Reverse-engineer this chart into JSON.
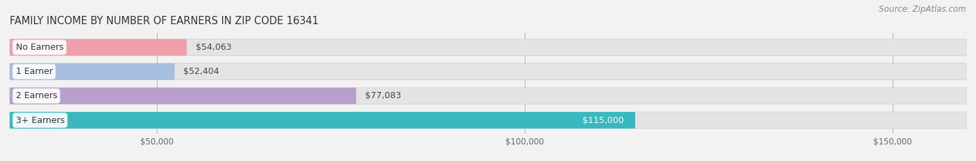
{
  "title": "FAMILY INCOME BY NUMBER OF EARNERS IN ZIP CODE 16341",
  "source": "Source: ZipAtlas.com",
  "categories": [
    "No Earners",
    "1 Earner",
    "2 Earners",
    "3+ Earners"
  ],
  "values": [
    54063,
    52404,
    77083,
    115000
  ],
  "bar_colors": [
    "#f0a0aa",
    "#a8bede",
    "#b8a0ce",
    "#3ab8c0"
  ],
  "value_labels": [
    "$54,063",
    "$52,404",
    "$77,083",
    "$115,000"
  ],
  "xmin": 30000,
  "xmax": 160000,
  "xticks": [
    50000,
    100000,
    150000
  ],
  "xtick_labels": [
    "$50,000",
    "$100,000",
    "$150,000"
  ],
  "background_color": "#f2f2f2",
  "bar_bg_color": "#e4e4e4",
  "title_fontsize": 10.5,
  "label_fontsize": 9,
  "value_fontsize": 9,
  "source_fontsize": 8.5
}
